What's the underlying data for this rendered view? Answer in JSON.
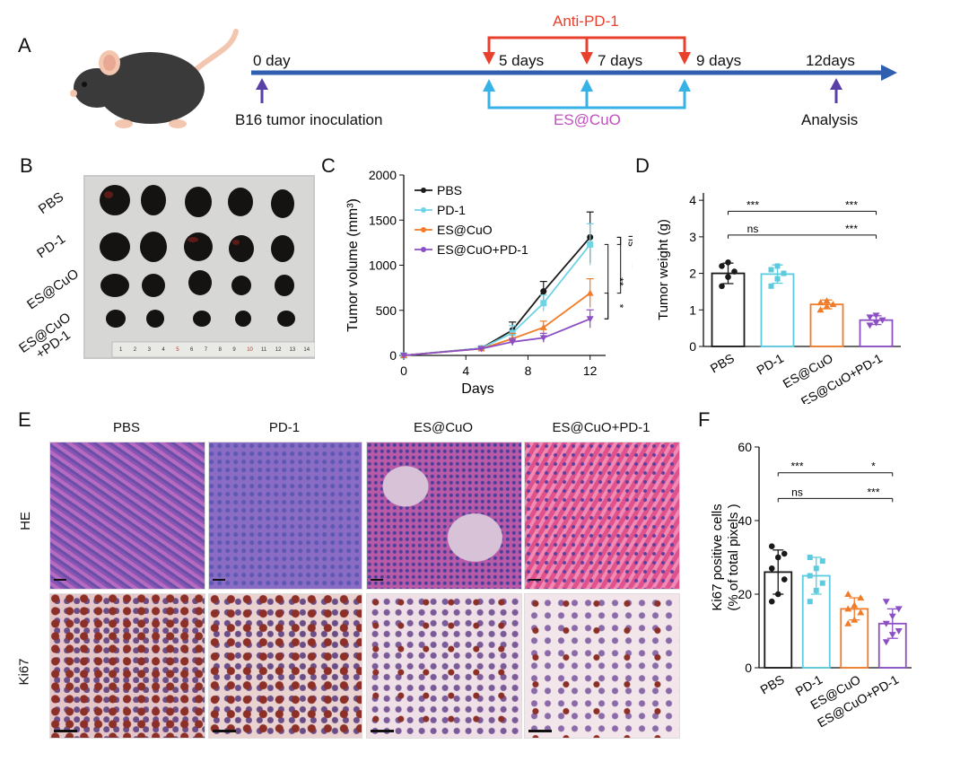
{
  "panel_letters": {
    "a": "A",
    "b": "B",
    "c": "C",
    "d": "D",
    "e": "E",
    "f": "F"
  },
  "timeline": {
    "day0": "0 day",
    "inoculation": "B16 tumor inoculation",
    "d5": "5 days",
    "d7": "7 days",
    "d9": "9 days",
    "d12": "12days",
    "analysis": "Analysis",
    "anti_pd1": "Anti-PD-1",
    "escuo": "ES@CuO",
    "colors": {
      "axis": "#2f5fae",
      "anti": "#e8402c",
      "escuo_line": "#37b2e6",
      "escuo_text": "#c04fc0",
      "marker": "#5b3fa8"
    }
  },
  "photo": {
    "rows": [
      "PBS",
      "PD-1",
      "ES@CuO",
      "ES@CuO\n+PD-1"
    ],
    "ruler_numbers": [
      "1",
      "2",
      "3",
      "4",
      "5",
      "6",
      "7",
      "8",
      "9",
      "10",
      "11",
      "12",
      "13",
      "14"
    ]
  },
  "histology": {
    "columns": [
      "PBS",
      "PD-1",
      "ES@CuO",
      "ES@CuO+PD-1"
    ],
    "rows": [
      "HE",
      "Ki67"
    ]
  },
  "chart_data": [
    {
      "type": "line",
      "panel": "C",
      "xlabel": "Days",
      "ylabel": "Tumor volume (mm³)",
      "x": [
        0,
        5,
        7,
        9,
        12
      ],
      "xticks": [
        0,
        4,
        8,
        12
      ],
      "yticks": [
        0,
        500,
        1000,
        1500,
        2000
      ],
      "xlim": [
        0,
        13
      ],
      "ylim": [
        0,
        2000
      ],
      "series": [
        {
          "name": "PBS",
          "color": "#1a1a1a",
          "values": [
            0,
            80,
            280,
            710,
            1310
          ],
          "err": [
            0,
            20,
            90,
            110,
            280
          ]
        },
        {
          "name": "PD-1",
          "color": "#6fd3e5",
          "values": [
            0,
            80,
            250,
            580,
            1230
          ],
          "err": [
            0,
            20,
            80,
            90,
            230
          ]
        },
        {
          "name": "ES@CuO",
          "color": "#f07c2a",
          "values": [
            0,
            75,
            185,
            310,
            690
          ],
          "err": [
            0,
            15,
            60,
            70,
            160
          ]
        },
        {
          "name": "ES@CuO+PD-1",
          "color": "#8d4fc4",
          "values": [
            0,
            75,
            150,
            195,
            405
          ],
          "err": [
            0,
            15,
            40,
            50,
            100
          ]
        }
      ],
      "significance": [
        "ns",
        "**",
        "**",
        "*"
      ]
    },
    {
      "type": "bar",
      "panel": "D",
      "ylabel": "Tumor weight (g)",
      "categories": [
        "PBS",
        "PD-1",
        "ES@CuO",
        "ES@CuO+PD-1"
      ],
      "values": [
        2.0,
        1.98,
        1.15,
        0.72
      ],
      "err": [
        0.28,
        0.25,
        0.12,
        0.12
      ],
      "colors": [
        "#1a1a1a",
        "#5ccbdf",
        "#f07c2a",
        "#8d4fc4"
      ],
      "points": [
        [
          1.65,
          1.9,
          2.05,
          2.2,
          2.3
        ],
        [
          1.65,
          1.85,
          2.0,
          2.1,
          2.2
        ],
        [
          1.0,
          1.1,
          1.15,
          1.2,
          1.25
        ],
        [
          0.58,
          0.65,
          0.72,
          0.8,
          0.85
        ]
      ],
      "yticks": [
        0,
        1,
        2,
        3,
        4
      ],
      "ylim": [
        0,
        4.2
      ],
      "significance": [
        "***",
        "***",
        "ns",
        "***"
      ]
    },
    {
      "type": "bar",
      "panel": "F",
      "ylabel": "Ki67 positive cells\n(% of total pixels )",
      "categories": [
        "PBS",
        "PD-1",
        "ES@CuO",
        "ES@CuO+PD-1"
      ],
      "values": [
        26,
        25,
        16,
        12
      ],
      "err": [
        6,
        5,
        3,
        4
      ],
      "colors": [
        "#1a1a1a",
        "#5ccbdf",
        "#f07c2a",
        "#8d4fc4"
      ],
      "points": [
        [
          18,
          20,
          24,
          27,
          30,
          31,
          33
        ],
        [
          18,
          21,
          23,
          25,
          27,
          29,
          30
        ],
        [
          12,
          13,
          15,
          16,
          17,
          19,
          20
        ],
        [
          7,
          9,
          10,
          12,
          14,
          16,
          18
        ]
      ],
      "yticks": [
        0,
        20,
        40,
        60
      ],
      "ylim": [
        0,
        60
      ],
      "significance": [
        "***",
        "*",
        "ns",
        "***"
      ]
    }
  ]
}
